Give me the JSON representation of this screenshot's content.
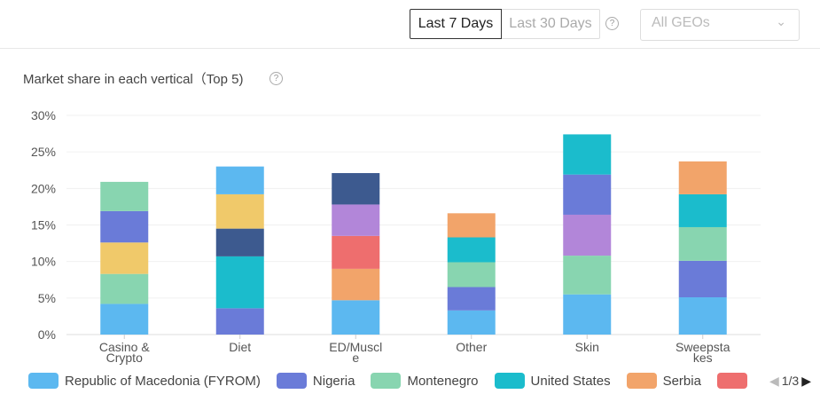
{
  "header": {
    "range_options": [
      "Last 7 Days",
      "Last 30 Days"
    ],
    "selected_range": "Last 7 Days",
    "geo_placeholder": "All GEOs",
    "help_icon": "?"
  },
  "chart_data": {
    "type": "bar",
    "stacked": true,
    "title": "Market share in each vertical（Top 5)",
    "categories": [
      "Casino & Crypto",
      "Diet",
      "ED/Muscle",
      "Other",
      "Skin",
      "Sweepstakes"
    ],
    "category_labels": [
      [
        "Casino &",
        "Crypto"
      ],
      [
        "Diet"
      ],
      [
        "ED/Muscl",
        "e"
      ],
      [
        "Other"
      ],
      [
        "Skin"
      ],
      [
        "Sweepsta",
        "kes"
      ]
    ],
    "ylim": [
      0,
      30
    ],
    "yticks": [
      "0%",
      "5%",
      "10%",
      "15%",
      "20%",
      "25%",
      "30%"
    ],
    "grid": true,
    "stacks": [
      [
        {
          "color": "#5cb8f0",
          "value": 4.2
        },
        {
          "color": "#88d5b0",
          "value": 4.1
        },
        {
          "color": "#f0c96a",
          "value": 4.3
        },
        {
          "color": "#6a7bd8",
          "value": 4.3
        },
        {
          "color": "#88d5b0",
          "value": 4.0
        }
      ],
      [
        {
          "color": "#6a7bd8",
          "value": 3.6
        },
        {
          "color": "#1bbccc",
          "value": 7.1
        },
        {
          "color": "#3d5a8f",
          "value": 3.8
        },
        {
          "color": "#f0c96a",
          "value": 4.7
        },
        {
          "color": "#5cb8f0",
          "value": 3.8
        }
      ],
      [
        {
          "color": "#5cb8f0",
          "value": 4.7
        },
        {
          "color": "#f2a46a",
          "value": 4.3
        },
        {
          "color": "#ee6e6e",
          "value": 4.5
        },
        {
          "color": "#b286d9",
          "value": 4.3
        },
        {
          "color": "#3d5a8f",
          "value": 4.3
        }
      ],
      [
        {
          "color": "#5cb8f0",
          "value": 3.3
        },
        {
          "color": "#6a7bd8",
          "value": 3.2
        },
        {
          "color": "#88d5b0",
          "value": 3.4
        },
        {
          "color": "#1bbccc",
          "value": 3.4
        },
        {
          "color": "#f2a46a",
          "value": 3.3
        }
      ],
      [
        {
          "color": "#5cb8f0",
          "value": 5.5
        },
        {
          "color": "#88d5b0",
          "value": 5.3
        },
        {
          "color": "#b286d9",
          "value": 5.6
        },
        {
          "color": "#6a7bd8",
          "value": 5.5
        },
        {
          "color": "#1bbccc",
          "value": 5.5
        }
      ],
      [
        {
          "color": "#5cb8f0",
          "value": 5.1
        },
        {
          "color": "#6a7bd8",
          "value": 5.0
        },
        {
          "color": "#88d5b0",
          "value": 4.6
        },
        {
          "color": "#1bbccc",
          "value": 4.5
        },
        {
          "color": "#f2a46a",
          "value": 4.5
        }
      ]
    ],
    "legend": [
      {
        "name": "Republic of Macedonia (FYROM)",
        "color": "#5cb8f0"
      },
      {
        "name": "Nigeria",
        "color": "#6a7bd8"
      },
      {
        "name": "Montenegro",
        "color": "#88d5b0"
      },
      {
        "name": "United States",
        "color": "#1bbccc"
      },
      {
        "name": "Serbia",
        "color": "#f2a46a"
      },
      {
        "name": "",
        "color": "#ee6e6e"
      }
    ],
    "legend_placement": "bottom",
    "legend_page": "1/3"
  }
}
